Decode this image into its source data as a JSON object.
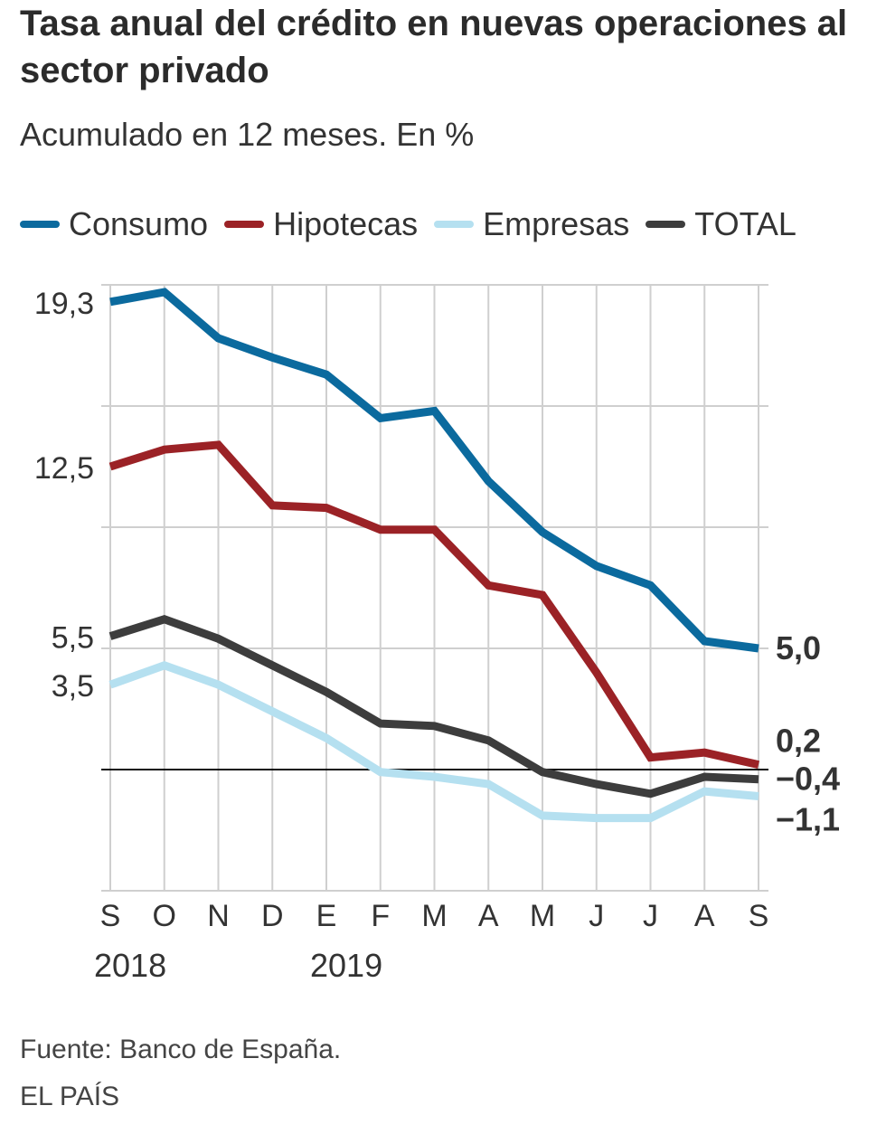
{
  "title": "Tasa anual del crédito en nuevas operaciones al sector privado",
  "subtitle": "Acumulado en 12 meses. En %",
  "legend": [
    {
      "label": "Consumo",
      "color": "#0b6a9e"
    },
    {
      "label": "Hipotecas",
      "color": "#9b2226"
    },
    {
      "label": "Empresas",
      "color": "#b5e0f0"
    },
    {
      "label": "TOTAL",
      "color": "#3d3d3d"
    }
  ],
  "footer": {
    "source": "Fuente: Banco de España.",
    "brand": "EL PAÍS"
  },
  "chart_data": {
    "type": "line",
    "title": "Tasa anual del crédito en nuevas operaciones al sector privado",
    "subtitle": "Acumulado en 12 meses. En %",
    "categories": [
      "S",
      "O",
      "N",
      "D",
      "E",
      "F",
      "M",
      "A",
      "M",
      "J",
      "J",
      "A",
      "S"
    ],
    "year_labels": [
      {
        "label": "2018",
        "index": 0
      },
      {
        "label": "2019",
        "index": 4
      }
    ],
    "ylim": [
      -5,
      20
    ],
    "gridlines": [
      -5,
      0,
      5,
      10,
      15,
      20
    ],
    "y_tick_labels": [
      {
        "label": "19,3",
        "value": 19.3
      },
      {
        "label": "12,5",
        "value": 12.5
      },
      {
        "label": "5,5",
        "value": 5.5
      },
      {
        "label": "3,5",
        "value": 3.5
      }
    ],
    "series": [
      {
        "name": "Consumo",
        "color": "#0b6a9e",
        "values": [
          19.3,
          19.7,
          17.8,
          17.0,
          16.3,
          14.5,
          14.8,
          11.9,
          9.8,
          8.4,
          7.6,
          5.3,
          5.0
        ],
        "end_label": "5,0"
      },
      {
        "name": "Hipotecas",
        "color": "#9b2226",
        "values": [
          12.5,
          13.2,
          13.4,
          10.9,
          10.8,
          9.9,
          9.9,
          7.6,
          7.2,
          4.0,
          0.5,
          0.7,
          0.2
        ],
        "end_label": "0,2"
      },
      {
        "name": "Empresas",
        "color": "#b5e0f0",
        "values": [
          3.5,
          4.3,
          3.5,
          2.4,
          1.3,
          -0.1,
          -0.3,
          -0.6,
          -1.9,
          -2.0,
          -2.0,
          -0.9,
          -1.1
        ],
        "end_label": "−1,1"
      },
      {
        "name": "TOTAL",
        "color": "#3d3d3d",
        "values": [
          5.5,
          6.2,
          5.4,
          4.3,
          3.2,
          1.9,
          1.8,
          1.2,
          -0.1,
          -0.6,
          -1.0,
          -0.3,
          -0.4
        ],
        "end_label": "−0,4"
      }
    ]
  }
}
